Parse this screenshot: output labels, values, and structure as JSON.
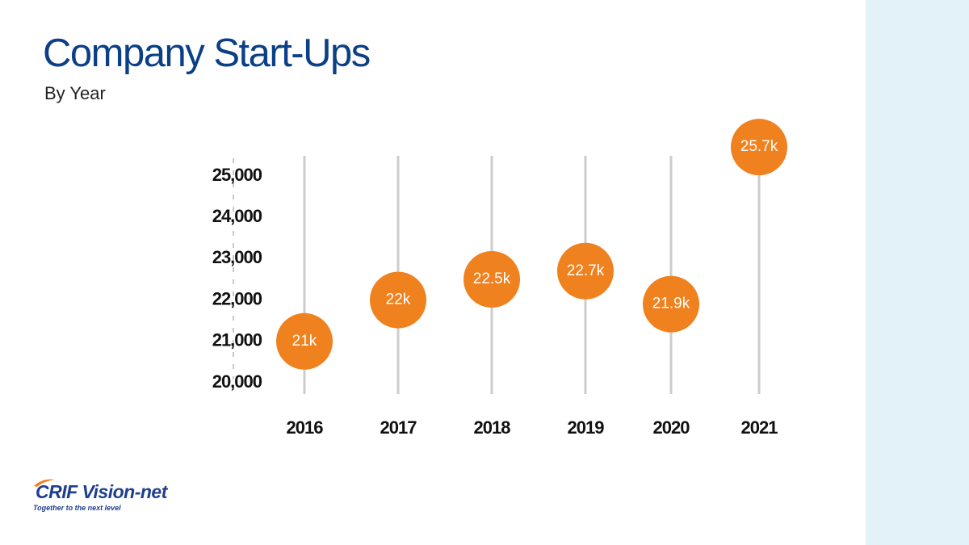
{
  "title": "Company Start-Ups",
  "subtitle": "By Year",
  "logo": {
    "text": "CRIF Vision-net",
    "tagline": "Together to the next level"
  },
  "colors": {
    "title": "#0b3f86",
    "accent": "#f0811f",
    "stem": "#cccccc",
    "side_panel": "#e3f1f9",
    "logo": "#1f3e8c"
  },
  "chart_data": {
    "type": "scatter",
    "title": "Company Start-Ups",
    "subtitle": "By Year",
    "xlabel": "",
    "ylabel": "",
    "categories": [
      "2016",
      "2017",
      "2018",
      "2019",
      "2020",
      "2021"
    ],
    "values": [
      21000,
      22000,
      22500,
      22700,
      21900,
      25700
    ],
    "data_labels": [
      "21k",
      "22k",
      "22.5k",
      "22.7k",
      "21.9k",
      "25.7k"
    ],
    "y_ticks": [
      20000,
      21000,
      22000,
      23000,
      24000,
      25000
    ],
    "y_tick_labels": [
      "20,000",
      "21,000",
      "22,000",
      "23,000",
      "24,000",
      "25,000"
    ],
    "ylim": [
      20000,
      25000
    ],
    "grid": false,
    "legend": "none"
  }
}
